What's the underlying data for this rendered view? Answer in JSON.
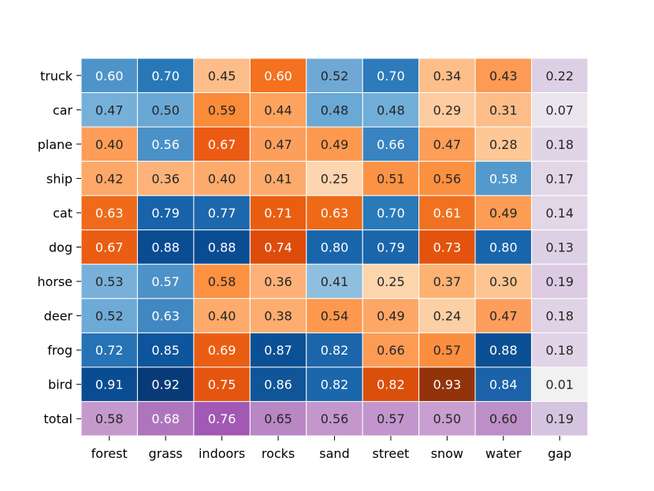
{
  "chart_data": {
    "type": "heatmap",
    "title": "",
    "xlabel": "",
    "ylabel": "",
    "columns": [
      "forest",
      "grass",
      "indoors",
      "rocks",
      "sand",
      "street",
      "snow",
      "water",
      "gap"
    ],
    "rows": [
      "truck",
      "car",
      "plane",
      "ship",
      "cat",
      "dog",
      "horse",
      "deer",
      "frog",
      "bird",
      "total"
    ],
    "values": [
      [
        0.6,
        0.7,
        0.45,
        0.6,
        0.52,
        0.7,
        0.34,
        0.43,
        0.22
      ],
      [
        0.47,
        0.5,
        0.59,
        0.44,
        0.48,
        0.48,
        0.29,
        0.31,
        0.07
      ],
      [
        0.4,
        0.56,
        0.67,
        0.47,
        0.49,
        0.66,
        0.47,
        0.28,
        0.18
      ],
      [
        0.42,
        0.36,
        0.4,
        0.41,
        0.25,
        0.51,
        0.56,
        0.58,
        0.17
      ],
      [
        0.63,
        0.79,
        0.77,
        0.71,
        0.63,
        0.7,
        0.61,
        0.49,
        0.14
      ],
      [
        0.67,
        0.88,
        0.88,
        0.74,
        0.8,
        0.79,
        0.73,
        0.8,
        0.13
      ],
      [
        0.53,
        0.57,
        0.58,
        0.36,
        0.41,
        0.25,
        0.37,
        0.3,
        0.19
      ],
      [
        0.52,
        0.63,
        0.4,
        0.38,
        0.54,
        0.49,
        0.24,
        0.47,
        0.18
      ],
      [
        0.72,
        0.85,
        0.69,
        0.87,
        0.82,
        0.66,
        0.57,
        0.88,
        0.18
      ],
      [
        0.91,
        0.92,
        0.75,
        0.86,
        0.82,
        0.82,
        0.93,
        0.84,
        0.01
      ],
      [
        0.58,
        0.68,
        0.76,
        0.65,
        0.56,
        0.57,
        0.5,
        0.6,
        0.19
      ]
    ],
    "colors": [
      [
        "#4f94c9",
        "#2878b8",
        "#fdbd8a",
        "#f3711f",
        "#6fa8d4",
        "#2d7bbb",
        "#fdbe8a",
        "#fd9a55",
        "#ddd0e4"
      ],
      [
        "#76b0d9",
        "#69a8d5",
        "#f98b39",
        "#fda35e",
        "#6aa8d5",
        "#71aed8",
        "#fdcca0",
        "#fdbd89",
        "#ebe6ed"
      ],
      [
        "#fd9d58",
        "#4a91c7",
        "#eb5b13",
        "#fd9f5c",
        "#fd994f",
        "#3984c0",
        "#fd9e59",
        "#fdc796",
        "#e0d5e6"
      ],
      [
        "#fda868",
        "#fdb27a",
        "#fdab6c",
        "#fdab6c",
        "#fdd5ae",
        "#fb9346",
        "#fb913f",
        "#5399cc",
        "#e1d7e7"
      ],
      [
        "#ef6b1b",
        "#1863aa",
        "#1d67ad",
        "#ea5e12",
        "#ee6a17",
        "#2a7ab9",
        "#f07221",
        "#fd9c54",
        "#e2d7e7"
      ],
      [
        "#ea5d12",
        "#0a4b92",
        "#0a4c92",
        "#dd4c0b",
        "#1965ab",
        "#1b66ab",
        "#e3530e",
        "#1965ab",
        "#dcd1e4"
      ],
      [
        "#78b0d9",
        "#4d92c8",
        "#fd9142",
        "#fdb178",
        "#8fbfde",
        "#fdd5ad",
        "#fdb272",
        "#fdc592",
        "#dccbe3"
      ],
      [
        "#6eaad6",
        "#4187c2",
        "#fdaa6b",
        "#fdad6f",
        "#fd984f",
        "#fda766",
        "#fdcfa4",
        "#fd9e5c",
        "#e0d3e6"
      ],
      [
        "#2673b5",
        "#0d559c",
        "#ea5e13",
        "#0b5095",
        "#1c65ab",
        "#fd9b55",
        "#fc8f3f",
        "#0b5094",
        "#e0d4e6"
      ],
      [
        "#0a4c92",
        "#083a77",
        "#e45510",
        "#0f5598",
        "#1b67ab",
        "#db4f0c",
        "#92330a",
        "#1b62a8",
        "#f1f1f1"
      ],
      [
        "#c699cd",
        "#ae75bd",
        "#a159b3",
        "#b887c4",
        "#c497cc",
        "#c296cc",
        "#c89fd0",
        "#bd8fc8",
        "#d5c4df"
      ]
    ]
  }
}
